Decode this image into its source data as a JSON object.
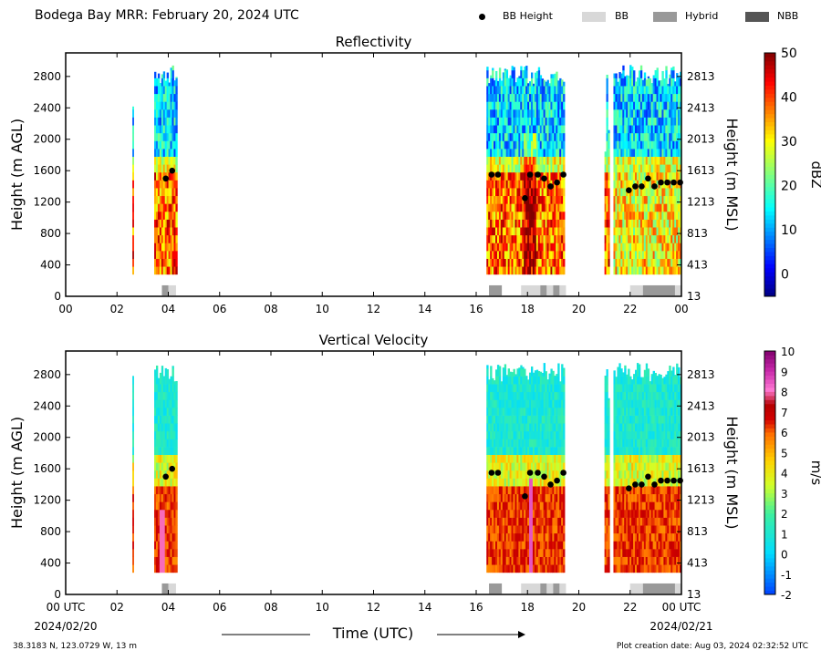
{
  "header": {
    "title": "Bodega Bay MRR:  February 20, 2024 UTC",
    "legend": [
      {
        "label": "BB Height",
        "swatch": "dot",
        "color": "#000000"
      },
      {
        "label": "BB",
        "swatch": "box",
        "color": "#d8d8d8"
      },
      {
        "label": "Hybrid",
        "swatch": "box",
        "color": "#999999"
      },
      {
        "label": "NBB",
        "swatch": "box",
        "color": "#555555"
      }
    ]
  },
  "chart_data": [
    {
      "type": "heatmap",
      "title": "Reflectivity",
      "ylabel": "Height (m AGL)",
      "ylabel_right": "Height (m MSL)",
      "yticks": [
        "0",
        "400",
        "800",
        "1200",
        "1600",
        "2000",
        "2400",
        "2800"
      ],
      "yticks_right": [
        "13",
        "413",
        "813",
        "1213",
        "1613",
        "2013",
        "2413",
        "2813"
      ],
      "xticks": [
        "00",
        "02",
        "04",
        "06",
        "08",
        "10",
        "12",
        "14",
        "16",
        "18",
        "20",
        "22",
        "00"
      ],
      "xlim": [
        0,
        24
      ],
      "ylim": [
        0,
        3100
      ],
      "colorbar": {
        "label": "dBZ",
        "ticks": [
          "0",
          "10",
          "20",
          "30",
          "40",
          "50"
        ],
        "range": [
          -5,
          50
        ]
      },
      "bb_heights": [
        [
          3.9,
          1500
        ],
        [
          4.15,
          1600
        ],
        [
          16.6,
          1550
        ],
        [
          16.85,
          1550
        ],
        [
          17.9,
          1250
        ],
        [
          18.1,
          1550
        ],
        [
          18.4,
          1550
        ],
        [
          18.65,
          1500
        ],
        [
          18.9,
          1400
        ],
        [
          19.15,
          1450
        ],
        [
          19.4,
          1550
        ],
        [
          21.95,
          1350
        ],
        [
          22.2,
          1400
        ],
        [
          22.45,
          1400
        ],
        [
          22.7,
          1500
        ],
        [
          22.95,
          1400
        ],
        [
          23.2,
          1450
        ],
        [
          23.45,
          1450
        ],
        [
          23.7,
          1450
        ],
        [
          23.95,
          1450
        ]
      ]
    },
    {
      "type": "heatmap",
      "title": "Vertical Velocity",
      "ylabel": "Height (m AGL)",
      "ylabel_right": "Height (m MSL)",
      "yticks": [
        "0",
        "400",
        "800",
        "1200",
        "1600",
        "2000",
        "2400",
        "2800"
      ],
      "yticks_right": [
        "13",
        "413",
        "813",
        "1213",
        "1613",
        "2013",
        "2413",
        "2813"
      ],
      "xticks": [
        "00 UTC",
        "02",
        "04",
        "06",
        "08",
        "10",
        "12",
        "14",
        "16",
        "18",
        "20",
        "22",
        "00 UTC"
      ],
      "date_left": "2024/02/20",
      "date_right": "2024/02/21",
      "xlabel": "Time (UTC)",
      "xlim": [
        0,
        24
      ],
      "ylim": [
        0,
        3100
      ],
      "colorbar": {
        "label": "m/s",
        "ticks": [
          "-2",
          "-1",
          "0",
          "1",
          "2",
          "3",
          "4",
          "5",
          "6",
          "7",
          "8",
          "9",
          "10"
        ],
        "range": [
          -2,
          10
        ]
      },
      "bb_heights": [
        [
          3.9,
          1500
        ],
        [
          4.15,
          1600
        ],
        [
          16.6,
          1550
        ],
        [
          16.85,
          1550
        ],
        [
          17.9,
          1250
        ],
        [
          18.1,
          1550
        ],
        [
          18.4,
          1550
        ],
        [
          18.65,
          1500
        ],
        [
          18.9,
          1400
        ],
        [
          19.15,
          1450
        ],
        [
          19.4,
          1550
        ],
        [
          21.95,
          1350
        ],
        [
          22.2,
          1400
        ],
        [
          22.45,
          1400
        ],
        [
          22.7,
          1500
        ],
        [
          22.95,
          1400
        ],
        [
          23.2,
          1450
        ],
        [
          23.45,
          1450
        ],
        [
          23.7,
          1450
        ],
        [
          23.95,
          1450
        ]
      ]
    }
  ],
  "footer": {
    "location": "38.3183 N, 123.0729 W, 13 m",
    "creation": "Plot creation date: Aug 03, 2024 02:32:52 UTC"
  }
}
